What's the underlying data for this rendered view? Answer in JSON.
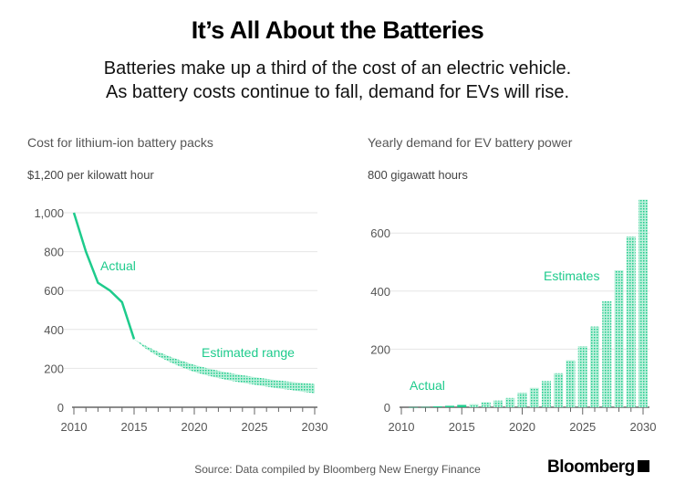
{
  "title": "It’s All About the Batteries",
  "subtitle_lines": [
    "Batteries make up a third of the cost of an electric vehicle.",
    "As battery costs continue to fall, demand for EVs will rise."
  ],
  "source": "Source: Data compiled by Bloomberg New Energy Finance",
  "logo": "Bloomberg",
  "colors": {
    "accent": "#1ecb8c",
    "axis": "#666",
    "grid": "#e6e6e6",
    "text": "#555"
  },
  "chart_data": [
    {
      "type": "line",
      "title": "Cost for lithium-ion battery packs",
      "unit_label": "$1,200 per kilowatt hour",
      "xlim": [
        2010,
        2030
      ],
      "ylim": [
        0,
        1200
      ],
      "x_ticks": [
        "2010",
        "2015",
        "2020",
        "2025",
        "2030"
      ],
      "y_ticks": [
        "0",
        "200",
        "400",
        "600",
        "800",
        "1,000"
      ],
      "grid": true,
      "series": [
        {
          "name": "Actual",
          "x": [
            2010,
            2011,
            2012,
            2013,
            2014,
            2015
          ],
          "y": [
            1000,
            800,
            640,
            600,
            540,
            350
          ]
        },
        {
          "name": "Estimated range",
          "x": [
            2015,
            2016,
            2017,
            2018,
            2019,
            2020,
            2021,
            2022,
            2023,
            2024,
            2025,
            2026,
            2027,
            2028,
            2029,
            2030
          ],
          "upper": [
            350,
            315,
            285,
            260,
            238,
            218,
            202,
            188,
            176,
            165,
            155,
            146,
            138,
            131,
            125,
            120
          ],
          "lower": [
            350,
            300,
            262,
            232,
            205,
            182,
            165,
            150,
            137,
            126,
            116,
            106,
            97,
            89,
            80,
            72
          ]
        }
      ],
      "annotations": [
        "Actual",
        "Estimated range"
      ]
    },
    {
      "type": "bar",
      "title": "Yearly demand for EV battery power",
      "unit_label": "800 gigawatt hours",
      "xlim": [
        2010,
        2030
      ],
      "ylim": [
        0,
        800
      ],
      "x_ticks": [
        "2010",
        "2015",
        "2020",
        "2025",
        "2030"
      ],
      "y_ticks": [
        "0",
        "200",
        "400",
        "600"
      ],
      "grid": true,
      "categories": [
        2011,
        2012,
        2013,
        2014,
        2015,
        2016,
        2017,
        2018,
        2019,
        2020,
        2021,
        2022,
        2023,
        2024,
        2025,
        2026,
        2027,
        2028,
        2029,
        2030
      ],
      "values": [
        0.5,
        1,
        3,
        5,
        8,
        11,
        17,
        23,
        32,
        50,
        67,
        90,
        117,
        162,
        210,
        278,
        365,
        472,
        588,
        715
      ],
      "actual_through": 2015,
      "annotations": [
        "Actual",
        "Estimates"
      ]
    }
  ]
}
